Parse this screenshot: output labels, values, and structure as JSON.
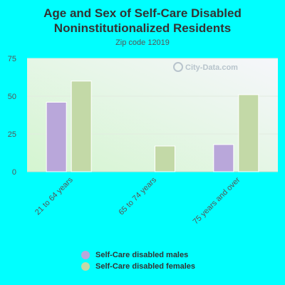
{
  "title_line1": "Age and Sex of Self-Care Disabled",
  "title_line2": "Noninstitutionalized Residents",
  "subtitle": "Zip code 12019",
  "watermark": "City-Data.com",
  "colors": {
    "males": "#b9a7da",
    "females": "#c3d9a7"
  },
  "chart_data": {
    "type": "bar",
    "title": "Age and Sex of Self-Care Disabled Noninstitutionalized Residents",
    "subtitle": "Zip code 12019",
    "categories": [
      "21 to 64 years",
      "65 to 74 years",
      "75 years and over"
    ],
    "series": [
      {
        "name": "Self-Care disabled males",
        "values": [
          46,
          0,
          18
        ]
      },
      {
        "name": "Self-Care disabled females",
        "values": [
          60,
          17,
          51
        ]
      }
    ],
    "ylim": [
      0,
      75
    ],
    "yticks": [
      0,
      25,
      50,
      75
    ],
    "grid": true,
    "legend": "bottom"
  }
}
